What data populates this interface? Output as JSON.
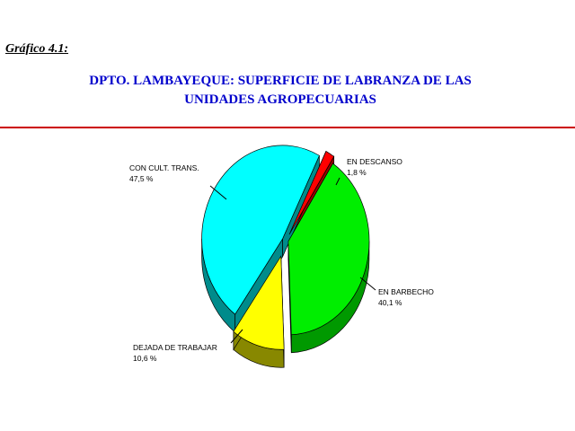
{
  "header": {
    "figure_label": "Gráfico 4.1:",
    "title_line1": "DPTO. LAMBAYEQUE: SUPERFICIE DE LABRANZA DE LAS",
    "title_line2": "UNIDADES AGROPECUARIAS"
  },
  "colors": {
    "title": "#0000cc",
    "rule": "#cc0000"
  },
  "chart_data": {
    "type": "pie",
    "title": "DPTO. LAMBAYEQUE: SUPERFICIE DE LABRANZA DE LAS UNIDADES AGROPECUARIAS",
    "style": "3d-exploded",
    "slices": [
      {
        "label": "EN DESCANSO",
        "value_label": "1,8 %",
        "value": 1.8,
        "color": "#ff0000",
        "side_color": "#990000"
      },
      {
        "label": "EN BARBECHO",
        "value_label": "40,1 %",
        "value": 40.1,
        "color": "#00ee00",
        "side_color": "#009900"
      },
      {
        "label": "DEJADA DE TRABAJAR",
        "value_label": "10,6 %",
        "value": 10.6,
        "color": "#ffff00",
        "side_color": "#888800"
      },
      {
        "label": "CON CULT. TRANS.",
        "value_label": "47,5 %",
        "value": 47.5,
        "color": "#00ffff",
        "side_color": "#008b8b"
      }
    ]
  }
}
